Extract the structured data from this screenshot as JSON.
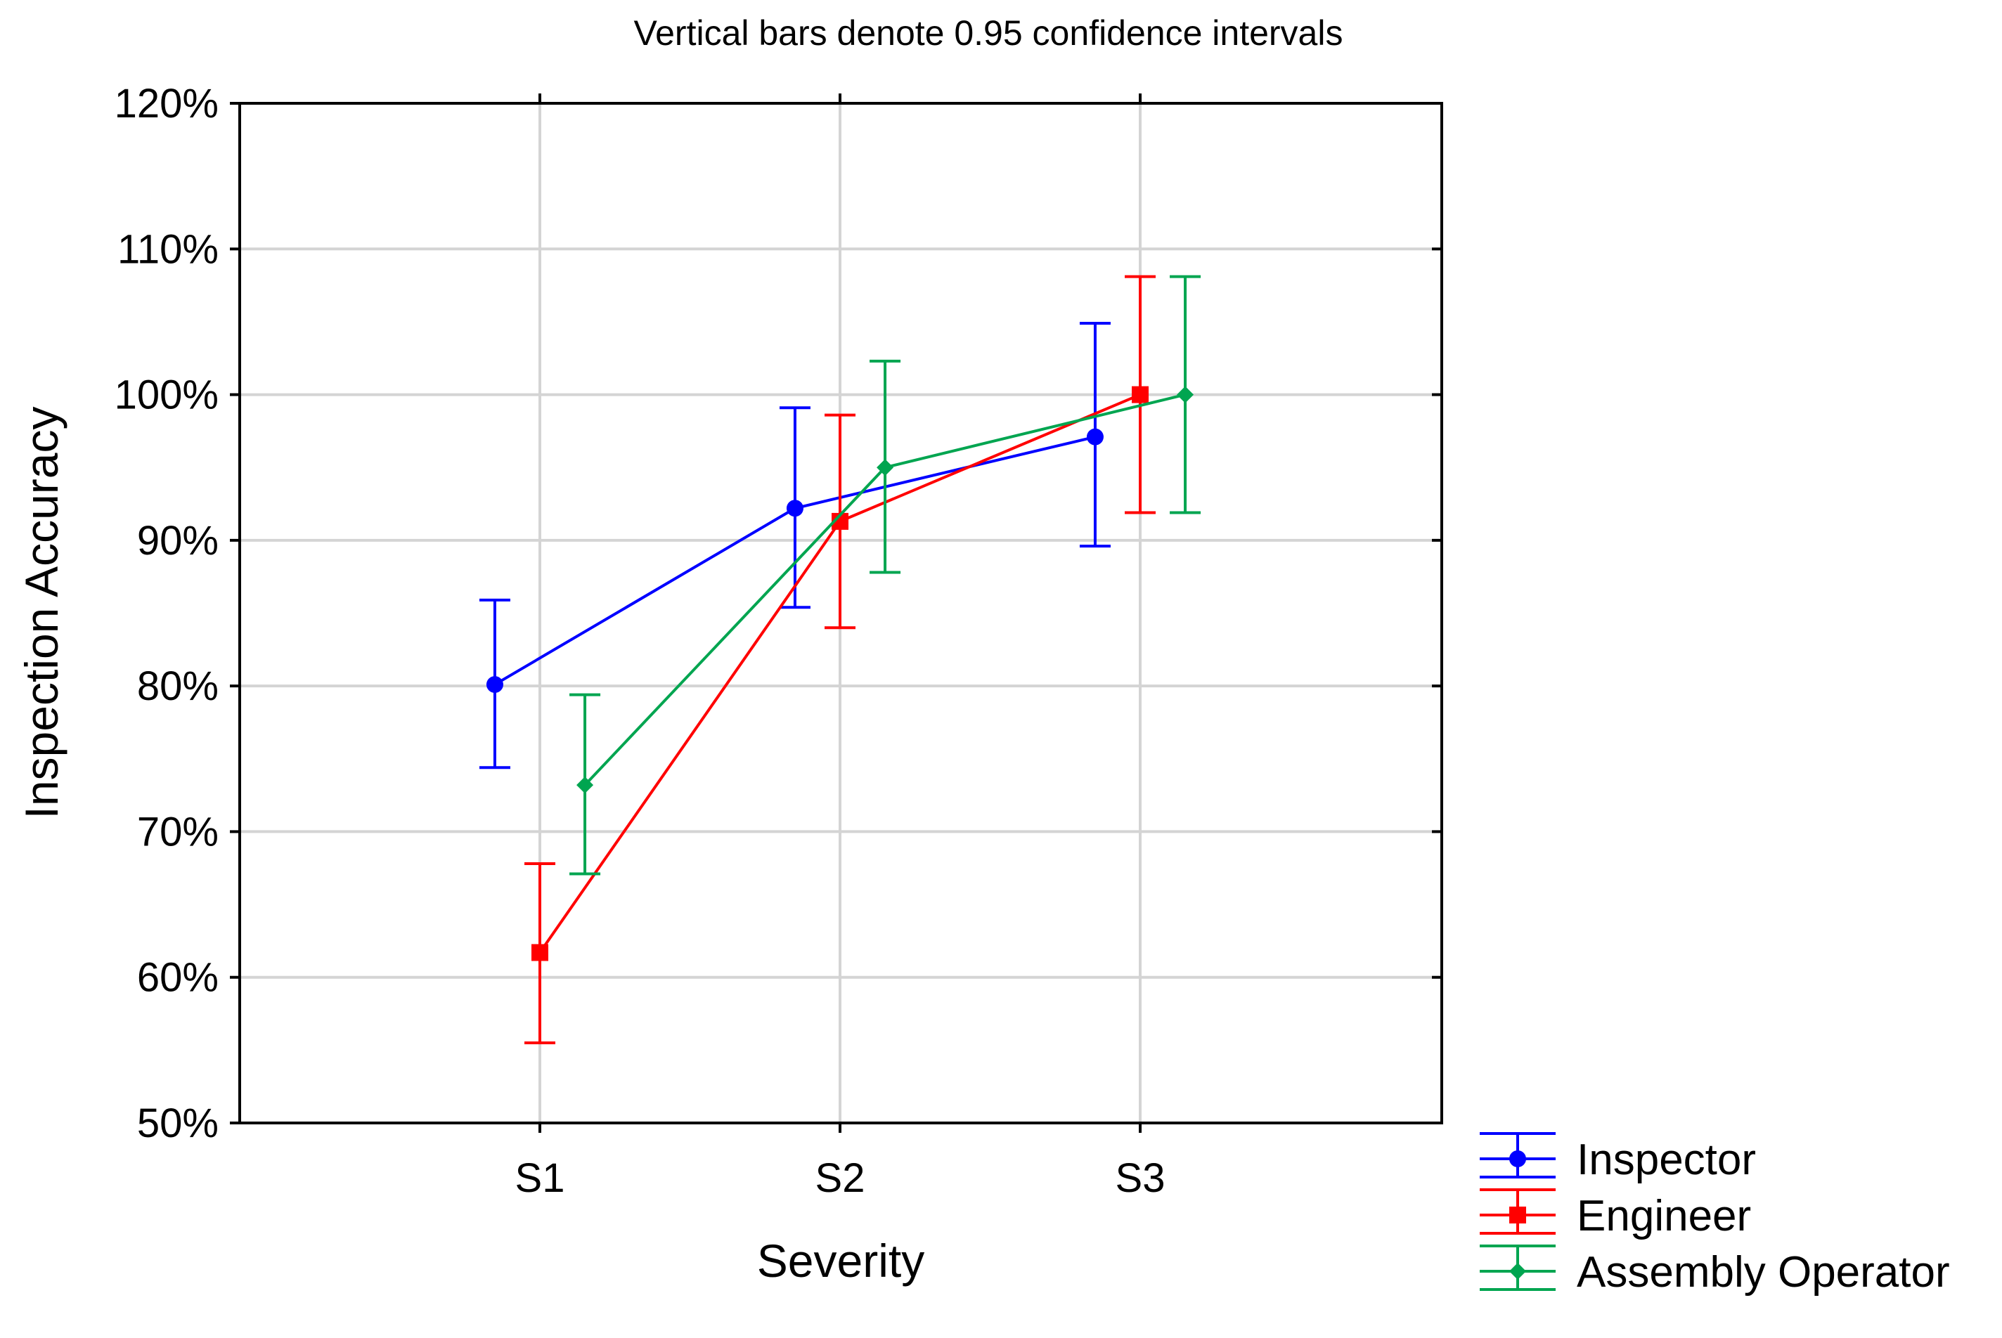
{
  "chart_data": {
    "type": "line",
    "title": "Vertical bars denote 0.95 confidence intervals",
    "xlabel": "Severity",
    "ylabel": "Inspection Accuracy",
    "categories": [
      "S1",
      "S2",
      "S3"
    ],
    "ylim": [
      50,
      120
    ],
    "yticks": [
      50,
      60,
      70,
      80,
      90,
      100,
      110,
      120
    ],
    "ytick_labels": [
      "50%",
      "60%",
      "70%",
      "80%",
      "90%",
      "100%",
      "110%",
      "120%"
    ],
    "grid": true,
    "legend_position": "bottom-right outside",
    "series": [
      {
        "name": "Inspector",
        "color": "#0000ff",
        "marker": "circle",
        "offset": -0.15,
        "values": [
          80.1,
          92.2,
          97.1
        ],
        "ci_low": [
          74.4,
          85.4,
          89.6
        ],
        "ci_high": [
          85.9,
          99.1,
          104.9
        ]
      },
      {
        "name": "Engineer",
        "color": "#ff0000",
        "marker": "square",
        "offset": 0.0,
        "values": [
          61.7,
          91.3,
          100.0
        ],
        "ci_low": [
          55.5,
          84.0,
          91.9
        ],
        "ci_high": [
          67.8,
          98.6,
          108.1
        ]
      },
      {
        "name": "Assembly Operator",
        "color": "#00a550",
        "marker": "diamond",
        "offset": 0.15,
        "values": [
          73.2,
          95.0,
          100.0
        ],
        "ci_low": [
          67.1,
          87.8,
          91.9
        ],
        "ci_high": [
          79.4,
          102.3,
          108.1
        ]
      }
    ]
  }
}
